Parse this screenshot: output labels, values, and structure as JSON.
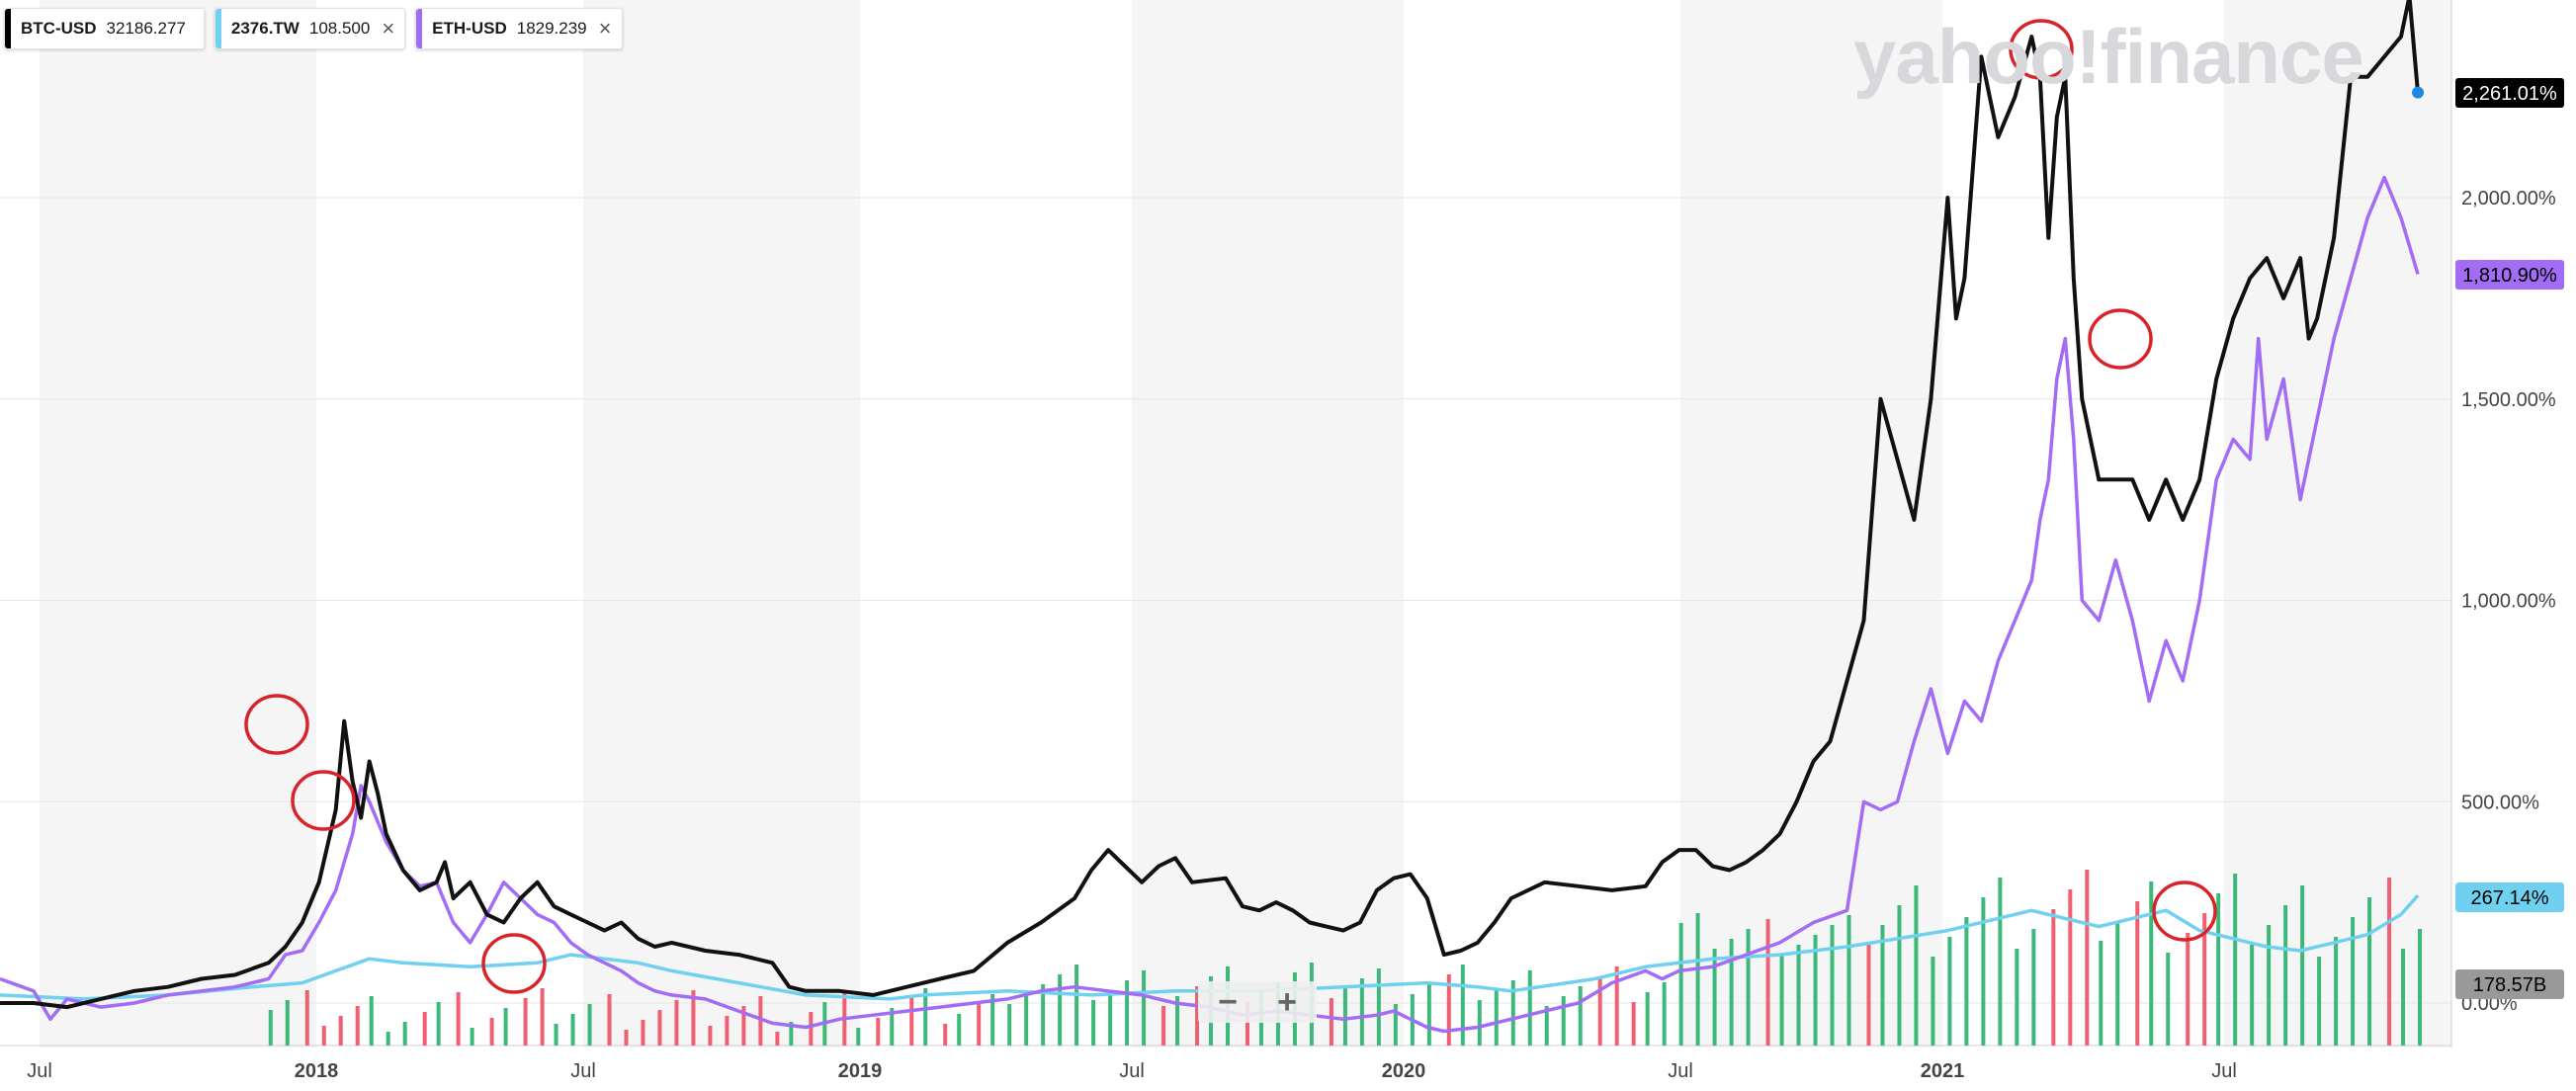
{
  "legend": [
    {
      "symbol": "BTC-USD",
      "value": "32186.277",
      "color": "#000000",
      "closable": false
    },
    {
      "symbol": "2376.TW",
      "value": "108.500",
      "color": "#6fd0f0",
      "closable": true
    },
    {
      "symbol": "ETH-USD",
      "value": "1829.239",
      "color": "#a26cf5",
      "closable": true
    }
  ],
  "watermark": "yahoo!finance",
  "zoom": {
    "minus": "−",
    "plus": "+"
  },
  "chart_data": {
    "type": "line",
    "x_domain": [
      "2017-05",
      "2021-11"
    ],
    "x_tick_labels": [
      "Jul",
      "2018",
      "Jul",
      "2019",
      "Jul",
      "2020",
      "Jul",
      "2021",
      "Jul"
    ],
    "y_tick_labels": [
      "0.00%",
      "500.00%",
      "1,000.00%",
      "1,500.00%",
      "2,000.00%"
    ],
    "y_ticks": [
      0,
      500,
      1000,
      1500,
      2000
    ],
    "ylim": [
      -100,
      2500
    ],
    "series": [
      {
        "name": "BTC-USD",
        "color": "#111111",
        "last_label": "2,261.01%",
        "points": [
          [
            0,
            0
          ],
          [
            4,
            0
          ],
          [
            8,
            -10
          ],
          [
            12,
            10
          ],
          [
            16,
            30
          ],
          [
            20,
            40
          ],
          [
            24,
            60
          ],
          [
            28,
            70
          ],
          [
            32,
            100
          ],
          [
            34,
            140
          ],
          [
            36,
            200
          ],
          [
            38,
            300
          ],
          [
            40,
            480
          ],
          [
            41,
            700
          ],
          [
            42,
            550
          ],
          [
            43,
            460
          ],
          [
            44,
            600
          ],
          [
            45,
            520
          ],
          [
            46,
            420
          ],
          [
            48,
            330
          ],
          [
            50,
            280
          ],
          [
            52,
            300
          ],
          [
            53,
            350
          ],
          [
            54,
            260
          ],
          [
            56,
            300
          ],
          [
            58,
            220
          ],
          [
            60,
            200
          ],
          [
            62,
            260
          ],
          [
            64,
            300
          ],
          [
            66,
            240
          ],
          [
            68,
            220
          ],
          [
            70,
            200
          ],
          [
            72,
            180
          ],
          [
            74,
            200
          ],
          [
            76,
            160
          ],
          [
            78,
            140
          ],
          [
            80,
            150
          ],
          [
            84,
            130
          ],
          [
            88,
            120
          ],
          [
            92,
            100
          ],
          [
            94,
            40
          ],
          [
            96,
            30
          ],
          [
            100,
            30
          ],
          [
            104,
            20
          ],
          [
            108,
            40
          ],
          [
            112,
            60
          ],
          [
            116,
            80
          ],
          [
            120,
            150
          ],
          [
            124,
            200
          ],
          [
            128,
            260
          ],
          [
            130,
            330
          ],
          [
            132,
            380
          ],
          [
            134,
            340
          ],
          [
            136,
            300
          ],
          [
            138,
            340
          ],
          [
            140,
            360
          ],
          [
            142,
            300
          ],
          [
            146,
            310
          ],
          [
            148,
            240
          ],
          [
            150,
            230
          ],
          [
            152,
            250
          ],
          [
            154,
            230
          ],
          [
            156,
            200
          ],
          [
            158,
            190
          ],
          [
            160,
            180
          ],
          [
            162,
            200
          ],
          [
            164,
            280
          ],
          [
            166,
            310
          ],
          [
            168,
            320
          ],
          [
            170,
            260
          ],
          [
            172,
            120
          ],
          [
            174,
            130
          ],
          [
            176,
            150
          ],
          [
            178,
            200
          ],
          [
            180,
            260
          ],
          [
            184,
            300
          ],
          [
            188,
            290
          ],
          [
            192,
            280
          ],
          [
            196,
            290
          ],
          [
            198,
            350
          ],
          [
            200,
            380
          ],
          [
            202,
            380
          ],
          [
            204,
            340
          ],
          [
            206,
            330
          ],
          [
            208,
            350
          ],
          [
            210,
            380
          ],
          [
            212,
            420
          ],
          [
            214,
            500
          ],
          [
            216,
            600
          ],
          [
            218,
            650
          ],
          [
            220,
            800
          ],
          [
            222,
            950
          ],
          [
            224,
            1500
          ],
          [
            226,
            1350
          ],
          [
            228,
            1200
          ],
          [
            230,
            1500
          ],
          [
            232,
            2000
          ],
          [
            233,
            1700
          ],
          [
            234,
            1800
          ],
          [
            236,
            2350
          ],
          [
            238,
            2150
          ],
          [
            240,
            2250
          ],
          [
            242,
            2400
          ],
          [
            243,
            2300
          ],
          [
            244,
            1900
          ],
          [
            245,
            2200
          ],
          [
            246,
            2300
          ],
          [
            247,
            1800
          ],
          [
            248,
            1500
          ],
          [
            250,
            1300
          ],
          [
            252,
            1300
          ],
          [
            254,
            1300
          ],
          [
            256,
            1200
          ],
          [
            258,
            1300
          ],
          [
            260,
            1200
          ],
          [
            262,
            1300
          ],
          [
            264,
            1550
          ],
          [
            266,
            1700
          ],
          [
            268,
            1800
          ],
          [
            270,
            1850
          ],
          [
            272,
            1750
          ],
          [
            274,
            1850
          ],
          [
            275,
            1650
          ],
          [
            276,
            1700
          ],
          [
            278,
            1900
          ],
          [
            280,
            2300
          ],
          [
            282,
            2300
          ],
          [
            284,
            2350
          ],
          [
            286,
            2400
          ],
          [
            287,
            2500
          ],
          [
            288,
            2261
          ]
        ]
      },
      {
        "name": "ETH-USD",
        "color": "#a26cf5",
        "last_label": "1,810.90%",
        "points": [
          [
            0,
            60
          ],
          [
            4,
            30
          ],
          [
            6,
            -40
          ],
          [
            8,
            10
          ],
          [
            12,
            -10
          ],
          [
            16,
            0
          ],
          [
            20,
            20
          ],
          [
            24,
            30
          ],
          [
            28,
            40
          ],
          [
            32,
            60
          ],
          [
            34,
            120
          ],
          [
            36,
            130
          ],
          [
            38,
            200
          ],
          [
            40,
            280
          ],
          [
            42,
            420
          ],
          [
            43,
            540
          ],
          [
            44,
            500
          ],
          [
            46,
            400
          ],
          [
            48,
            330
          ],
          [
            50,
            290
          ],
          [
            52,
            300
          ],
          [
            54,
            200
          ],
          [
            56,
            150
          ],
          [
            58,
            220
          ],
          [
            60,
            300
          ],
          [
            62,
            260
          ],
          [
            64,
            220
          ],
          [
            66,
            200
          ],
          [
            68,
            150
          ],
          [
            70,
            120
          ],
          [
            72,
            100
          ],
          [
            74,
            80
          ],
          [
            76,
            50
          ],
          [
            78,
            30
          ],
          [
            80,
            20
          ],
          [
            84,
            10
          ],
          [
            88,
            -20
          ],
          [
            92,
            -50
          ],
          [
            96,
            -60
          ],
          [
            100,
            -40
          ],
          [
            104,
            -30
          ],
          [
            108,
            -20
          ],
          [
            112,
            -10
          ],
          [
            116,
            0
          ],
          [
            120,
            10
          ],
          [
            124,
            30
          ],
          [
            128,
            40
          ],
          [
            132,
            30
          ],
          [
            136,
            20
          ],
          [
            140,
            0
          ],
          [
            144,
            -10
          ],
          [
            148,
            -30
          ],
          [
            152,
            -20
          ],
          [
            156,
            -30
          ],
          [
            160,
            -40
          ],
          [
            164,
            -30
          ],
          [
            166,
            -20
          ],
          [
            168,
            -40
          ],
          [
            170,
            -60
          ],
          [
            172,
            -70
          ],
          [
            176,
            -60
          ],
          [
            180,
            -40
          ],
          [
            184,
            -20
          ],
          [
            188,
            0
          ],
          [
            192,
            50
          ],
          [
            196,
            80
          ],
          [
            198,
            60
          ],
          [
            200,
            80
          ],
          [
            204,
            90
          ],
          [
            208,
            120
          ],
          [
            212,
            150
          ],
          [
            216,
            200
          ],
          [
            220,
            230
          ],
          [
            222,
            500
          ],
          [
            224,
            480
          ],
          [
            226,
            500
          ],
          [
            228,
            650
          ],
          [
            230,
            780
          ],
          [
            232,
            620
          ],
          [
            234,
            750
          ],
          [
            236,
            700
          ],
          [
            238,
            850
          ],
          [
            240,
            950
          ],
          [
            242,
            1050
          ],
          [
            243,
            1200
          ],
          [
            244,
            1300
          ],
          [
            245,
            1550
          ],
          [
            246,
            1650
          ],
          [
            247,
            1400
          ],
          [
            248,
            1000
          ],
          [
            250,
            950
          ],
          [
            252,
            1100
          ],
          [
            254,
            950
          ],
          [
            256,
            750
          ],
          [
            258,
            900
          ],
          [
            260,
            800
          ],
          [
            262,
            1000
          ],
          [
            264,
            1300
          ],
          [
            266,
            1400
          ],
          [
            268,
            1350
          ],
          [
            269,
            1650
          ],
          [
            270,
            1400
          ],
          [
            272,
            1550
          ],
          [
            274,
            1250
          ],
          [
            276,
            1450
          ],
          [
            278,
            1650
          ],
          [
            280,
            1800
          ],
          [
            282,
            1950
          ],
          [
            284,
            2050
          ],
          [
            286,
            1950
          ],
          [
            288,
            1810
          ]
        ]
      },
      {
        "name": "2376.TW",
        "color": "#6fd0f0",
        "last_label": "267.14%",
        "points": [
          [
            0,
            20
          ],
          [
            10,
            10
          ],
          [
            20,
            20
          ],
          [
            30,
            40
          ],
          [
            36,
            50
          ],
          [
            40,
            80
          ],
          [
            44,
            110
          ],
          [
            48,
            100
          ],
          [
            56,
            90
          ],
          [
            64,
            100
          ],
          [
            68,
            120
          ],
          [
            72,
            110
          ],
          [
            76,
            100
          ],
          [
            80,
            80
          ],
          [
            88,
            50
          ],
          [
            96,
            20
          ],
          [
            106,
            10
          ],
          [
            110,
            20
          ],
          [
            120,
            30
          ],
          [
            130,
            20
          ],
          [
            140,
            30
          ],
          [
            150,
            30
          ],
          [
            160,
            40
          ],
          [
            170,
            50
          ],
          [
            176,
            40
          ],
          [
            180,
            30
          ],
          [
            190,
            60
          ],
          [
            196,
            90
          ],
          [
            204,
            110
          ],
          [
            212,
            120
          ],
          [
            220,
            140
          ],
          [
            226,
            160
          ],
          [
            232,
            180
          ],
          [
            238,
            210
          ],
          [
            242,
            230
          ],
          [
            246,
            210
          ],
          [
            250,
            190
          ],
          [
            254,
            210
          ],
          [
            258,
            230
          ],
          [
            262,
            180
          ],
          [
            266,
            160
          ],
          [
            270,
            140
          ],
          [
            274,
            130
          ],
          [
            278,
            150
          ],
          [
            282,
            170
          ],
          [
            286,
            220
          ],
          [
            288,
            267
          ]
        ]
      }
    ],
    "volume_last_label": "178.57B",
    "volume": {
      "green": [
        32,
        34,
        44,
        46,
        48,
        52,
        56,
        60,
        66,
        68,
        70,
        94,
        98,
        102,
        106,
        110,
        114,
        118,
        120,
        122,
        124,
        126,
        128,
        130,
        132,
        134,
        136,
        140,
        144,
        146,
        150,
        152,
        154,
        156,
        160,
        162,
        164,
        166,
        168,
        170,
        174,
        176,
        178,
        180,
        182,
        184,
        186,
        188,
        196,
        198,
        200,
        202,
        204,
        206,
        208,
        212,
        214,
        216,
        218,
        220,
        224,
        226,
        228,
        230,
        232,
        234,
        236,
        238,
        240,
        242,
        250,
        252,
        256,
        258,
        264,
        266,
        268,
        270,
        272,
        274,
        276,
        278,
        280,
        282,
        286,
        288
      ],
      "red": [
        36,
        38,
        40,
        42,
        50,
        54,
        58,
        62,
        64,
        72,
        74,
        76,
        78,
        80,
        82,
        84,
        86,
        88,
        90,
        92,
        96,
        100,
        104,
        108,
        112,
        116,
        138,
        142,
        148,
        158,
        172,
        190,
        192,
        194,
        210,
        222,
        244,
        246,
        248,
        254,
        260,
        262,
        284
      ],
      "heights_note": "relative"
    }
  }
}
